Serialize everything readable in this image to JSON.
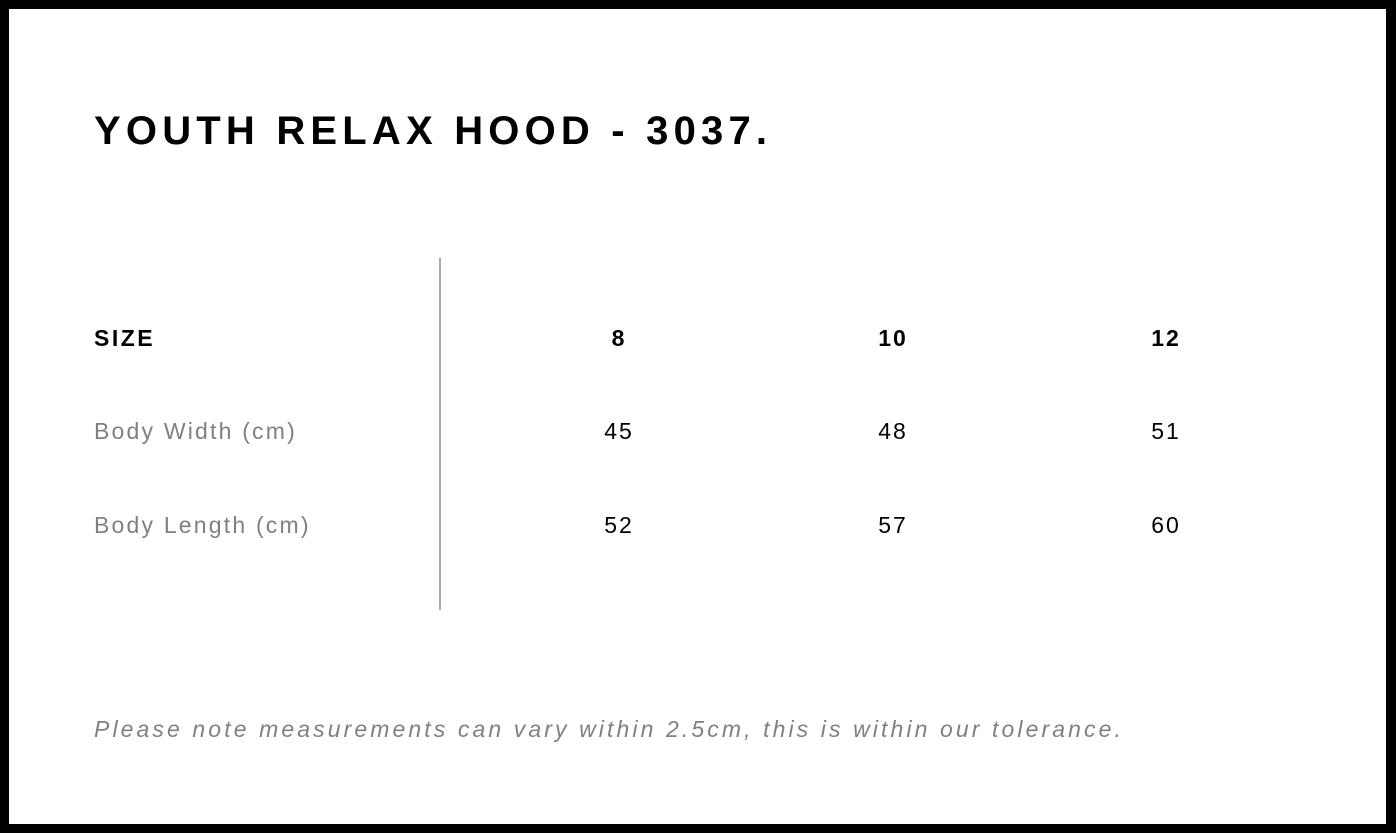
{
  "title": "YOUTH RELAX HOOD - 3037.",
  "table": {
    "header": {
      "label": "SIZE",
      "sizes": [
        "8",
        "10",
        "12"
      ]
    },
    "rows": [
      {
        "label": "Body Width (cm)",
        "values": [
          "45",
          "48",
          "51"
        ]
      },
      {
        "label": "Body Length (cm)",
        "values": [
          "52",
          "57",
          "60"
        ]
      }
    ]
  },
  "note": "Please note measurements can vary within 2.5cm, this is within our tolerance."
}
